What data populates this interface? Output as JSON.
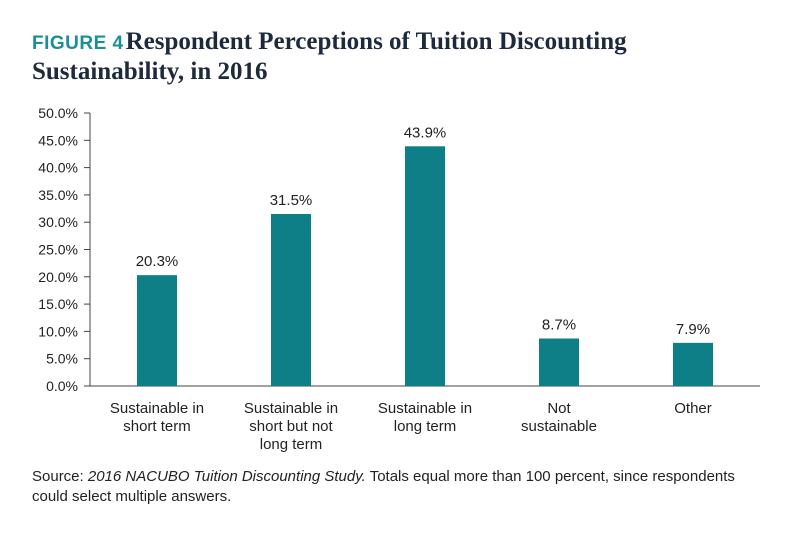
{
  "title": {
    "figure_label": "FIGURE 4",
    "line1": "Respondent Perceptions of Tuition Discounting",
    "line2": "Sustainability, in 2016"
  },
  "source": {
    "prefix": "Source: ",
    "publication": "2016 NACUBO Tuition Discounting Study.",
    "note": " Totals equal more than 100 percent, since respondents could select multiple answers."
  },
  "colors": {
    "bar": "#0e7f86",
    "axis": "#444444",
    "text": "#222222"
  },
  "chart_data": {
    "type": "bar",
    "title": "Respondent Perceptions of Tuition Discounting Sustainability, in 2016",
    "categories": [
      [
        "Sustainable in",
        "short term"
      ],
      [
        "Sustainable in",
        "short but not",
        "long term"
      ],
      [
        "Sustainable in",
        "long term"
      ],
      [
        "Not",
        "sustainable"
      ],
      [
        "Other"
      ]
    ],
    "values": [
      20.3,
      31.5,
      43.9,
      8.7,
      7.9
    ],
    "data_labels": [
      "20.3%",
      "31.5%",
      "43.9%",
      "8.7%",
      "7.9%"
    ],
    "ylim": [
      0,
      50
    ],
    "yticks": [
      0,
      5,
      10,
      15,
      20,
      25,
      30,
      35,
      40,
      45,
      50
    ],
    "ytick_labels": [
      "0.0%",
      "5.0%",
      "10.0%",
      "15.0%",
      "20.0%",
      "25.0%",
      "30.0%",
      "35.0%",
      "40.0%",
      "45.0%",
      "50.0%"
    ],
    "xlabel": "",
    "ylabel": "",
    "grid": false,
    "legend": "none"
  }
}
